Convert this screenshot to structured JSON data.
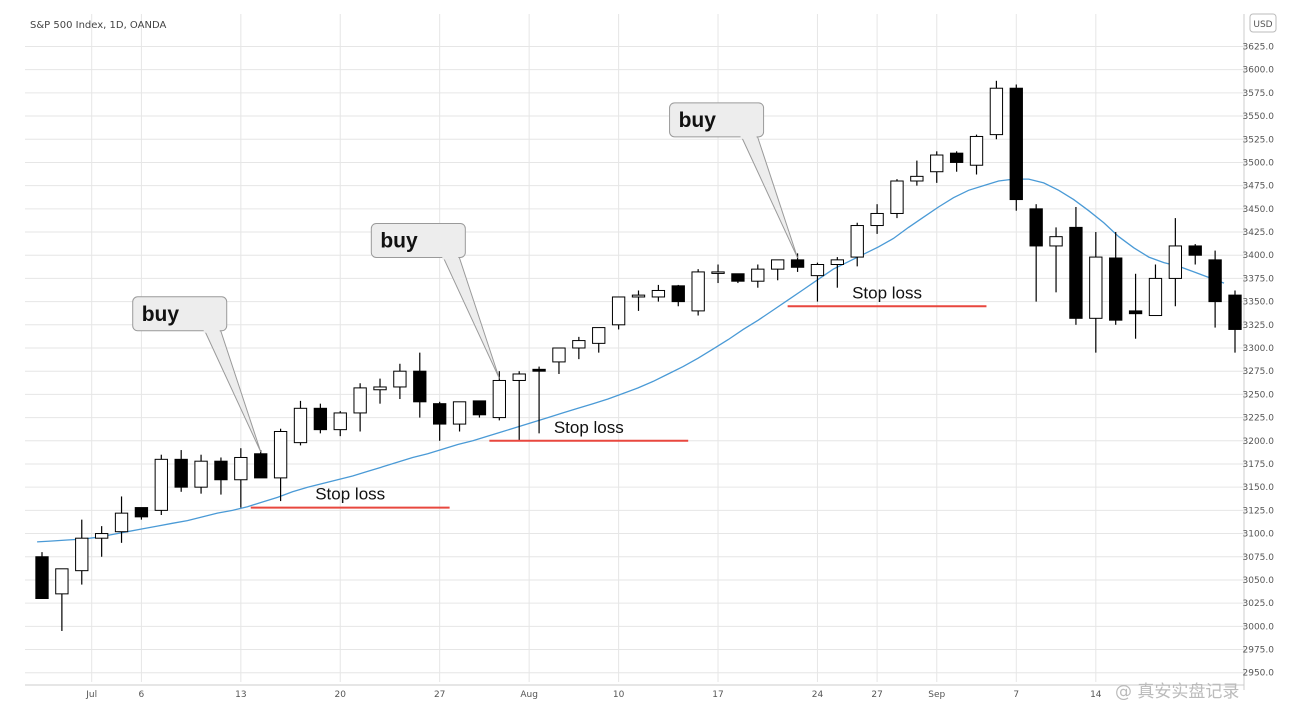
{
  "chart_data": {
    "type": "candlestick",
    "title": "S&P 500 Index, 1D, OANDA",
    "currency": "USD",
    "ylim": [
      2940,
      3660
    ],
    "y_ticks": [
      3625,
      3600,
      3575,
      3550,
      3525,
      3500,
      3475,
      3450,
      3425,
      3400,
      3375,
      3350,
      3325,
      3300,
      3275,
      3250,
      3225,
      3200,
      3175,
      3150,
      3125,
      3100,
      3075,
      3050,
      3025,
      3000,
      2975,
      2950
    ],
    "x_labels": [
      {
        "label": "Jul",
        "index": 2.5
      },
      {
        "label": "6",
        "index": 5
      },
      {
        "label": "13",
        "index": 10
      },
      {
        "label": "20",
        "index": 15
      },
      {
        "label": "27",
        "index": 20
      },
      {
        "label": "Aug",
        "index": 24.5
      },
      {
        "label": "10",
        "index": 29
      },
      {
        "label": "17",
        "index": 34
      },
      {
        "label": "24",
        "index": 39
      },
      {
        "label": "27",
        "index": 42
      },
      {
        "label": "Sep",
        "index": 45
      },
      {
        "label": "7",
        "index": 49
      },
      {
        "label": "14",
        "index": 53
      }
    ],
    "candles": [
      {
        "o": 3075,
        "h": 3080,
        "l": 3030,
        "c": 3030
      },
      {
        "o": 3035,
        "h": 3062,
        "l": 2995,
        "c": 3062
      },
      {
        "o": 3060,
        "h": 3115,
        "l": 3045,
        "c": 3095
      },
      {
        "o": 3095,
        "h": 3108,
        "l": 3075,
        "c": 3100
      },
      {
        "o": 3102,
        "h": 3140,
        "l": 3090,
        "c": 3122
      },
      {
        "o": 3128,
        "h": 3128,
        "l": 3115,
        "c": 3118
      },
      {
        "o": 3125,
        "h": 3185,
        "l": 3120,
        "c": 3180
      },
      {
        "o": 3180,
        "h": 3190,
        "l": 3145,
        "c": 3150
      },
      {
        "o": 3150,
        "h": 3185,
        "l": 3143,
        "c": 3178
      },
      {
        "o": 3178,
        "h": 3182,
        "l": 3142,
        "c": 3158
      },
      {
        "o": 3158,
        "h": 3192,
        "l": 3128,
        "c": 3182
      },
      {
        "o": 3186,
        "h": 3190,
        "l": 3160,
        "c": 3160
      },
      {
        "o": 3160,
        "h": 3213,
        "l": 3135,
        "c": 3210
      },
      {
        "o": 3198,
        "h": 3243,
        "l": 3195,
        "c": 3235
      },
      {
        "o": 3235,
        "h": 3240,
        "l": 3208,
        "c": 3212
      },
      {
        "o": 3212,
        "h": 3232,
        "l": 3205,
        "c": 3230
      },
      {
        "o": 3230,
        "h": 3262,
        "l": 3210,
        "c": 3257
      },
      {
        "o": 3255,
        "h": 3267,
        "l": 3240,
        "c": 3258
      },
      {
        "o": 3258,
        "h": 3283,
        "l": 3245,
        "c": 3275
      },
      {
        "o": 3275,
        "h": 3295,
        "l": 3225,
        "c": 3242
      },
      {
        "o": 3240,
        "h": 3242,
        "l": 3200,
        "c": 3218
      },
      {
        "o": 3218,
        "h": 3242,
        "l": 3210,
        "c": 3242
      },
      {
        "o": 3243,
        "h": 3243,
        "l": 3225,
        "c": 3228
      },
      {
        "o": 3225,
        "h": 3275,
        "l": 3222,
        "c": 3265
      },
      {
        "o": 3265,
        "h": 3275,
        "l": 3200,
        "c": 3272
      },
      {
        "o": 3277,
        "h": 3280,
        "l": 3208,
        "c": 3275
      },
      {
        "o": 3285,
        "h": 3300,
        "l": 3272,
        "c": 3300
      },
      {
        "o": 3300,
        "h": 3312,
        "l": 3288,
        "c": 3308
      },
      {
        "o": 3305,
        "h": 3322,
        "l": 3295,
        "c": 3322
      },
      {
        "o": 3325,
        "h": 3355,
        "l": 3320,
        "c": 3355
      },
      {
        "o": 3355,
        "h": 3362,
        "l": 3340,
        "c": 3357
      },
      {
        "o": 3355,
        "h": 3368,
        "l": 3350,
        "c": 3362
      },
      {
        "o": 3367,
        "h": 3368,
        "l": 3345,
        "c": 3350
      },
      {
        "o": 3340,
        "h": 3385,
        "l": 3335,
        "c": 3382
      },
      {
        "o": 3382,
        "h": 3390,
        "l": 3370,
        "c": 3382
      },
      {
        "o": 3380,
        "h": 3380,
        "l": 3370,
        "c": 3372
      },
      {
        "o": 3372,
        "h": 3390,
        "l": 3365,
        "c": 3385
      },
      {
        "o": 3385,
        "h": 3395,
        "l": 3373,
        "c": 3395
      },
      {
        "o": 3395,
        "h": 3402,
        "l": 3382,
        "c": 3387
      },
      {
        "o": 3378,
        "h": 3392,
        "l": 3350,
        "c": 3390
      },
      {
        "o": 3390,
        "h": 3398,
        "l": 3365,
        "c": 3395
      },
      {
        "o": 3398,
        "h": 3435,
        "l": 3388,
        "c": 3432
      },
      {
        "o": 3432,
        "h": 3455,
        "l": 3423,
        "c": 3445
      },
      {
        "o": 3445,
        "h": 3482,
        "l": 3440,
        "c": 3480
      },
      {
        "o": 3480,
        "h": 3502,
        "l": 3475,
        "c": 3485
      },
      {
        "o": 3490,
        "h": 3512,
        "l": 3478,
        "c": 3508
      },
      {
        "o": 3510,
        "h": 3512,
        "l": 3490,
        "c": 3500
      },
      {
        "o": 3497,
        "h": 3530,
        "l": 3487,
        "c": 3528
      },
      {
        "o": 3530,
        "h": 3588,
        "l": 3525,
        "c": 3580
      },
      {
        "o": 3580,
        "h": 3584,
        "l": 3448,
        "c": 3460
      },
      {
        "o": 3450,
        "h": 3455,
        "l": 3350,
        "c": 3410
      },
      {
        "o": 3410,
        "h": 3430,
        "l": 3360,
        "c": 3420
      },
      {
        "o": 3430,
        "h": 3452,
        "l": 3325,
        "c": 3332
      },
      {
        "o": 3332,
        "h": 3425,
        "l": 3295,
        "c": 3398
      },
      {
        "o": 3397,
        "h": 3425,
        "l": 3325,
        "c": 3330
      },
      {
        "o": 3340,
        "h": 3380,
        "l": 3310,
        "c": 3337
      },
      {
        "o": 3335,
        "h": 3390,
        "l": 3335,
        "c": 3375
      },
      {
        "o": 3375,
        "h": 3440,
        "l": 3345,
        "c": 3410
      },
      {
        "o": 3410,
        "h": 3412,
        "l": 3390,
        "c": 3400
      },
      {
        "o": 3395,
        "h": 3405,
        "l": 3322,
        "c": 3350
      },
      {
        "o": 3357,
        "h": 3362,
        "l": 3295,
        "c": 3320
      }
    ],
    "moving_average": [
      3092,
      3091,
      3092,
      3093,
      3094,
      3096,
      3099,
      3102,
      3105,
      3108,
      3111,
      3114,
      3118,
      3122,
      3125,
      3129,
      3134,
      3139,
      3145,
      3150,
      3154,
      3158,
      3162,
      3167,
      3172,
      3177,
      3182,
      3186,
      3191,
      3196,
      3200,
      3205,
      3210,
      3215,
      3220,
      3225,
      3230,
      3235,
      3240,
      3245,
      3251,
      3257,
      3264,
      3272,
      3280,
      3289,
      3299,
      3309,
      3320,
      3330,
      3341,
      3352,
      3363,
      3374,
      3385,
      3393,
      3401,
      3409,
      3418,
      3430,
      3441,
      3452,
      3462,
      3470,
      3475,
      3480,
      3482,
      3482,
      3478,
      3470,
      3460,
      3448,
      3435,
      3420,
      3408,
      3398,
      3392,
      3388,
      3382,
      3376,
      3370
    ],
    "moving_average_note": "MA line aligned to candle index via start offset",
    "annotations": [
      {
        "type": "callout",
        "text": "buy",
        "candle": 11
      },
      {
        "type": "callout",
        "text": "buy",
        "candle": 23
      },
      {
        "type": "callout",
        "text": "buy",
        "candle": 38
      },
      {
        "type": "stop_loss",
        "text": "Stop loss",
        "value": 3128,
        "from": 10.5,
        "to": 20.5
      },
      {
        "type": "stop_loss",
        "text": "Stop loss",
        "value": 3200,
        "from": 22.5,
        "to": 32.5
      },
      {
        "type": "stop_loss",
        "text": "Stop loss",
        "value": 3345,
        "from": 37.5,
        "to": 47.5
      }
    ],
    "colors": {
      "grid": "#e6e6e6",
      "bull_body": "#ffffff",
      "bear_body": "#000000",
      "wick": "#000000",
      "ma_line": "#4a9ad6",
      "stop_loss_line": "#e8473e",
      "callout_fill": "#ededed",
      "callout_stroke": "#9a9a9a"
    }
  },
  "watermark": "@ 真安实盘记录"
}
